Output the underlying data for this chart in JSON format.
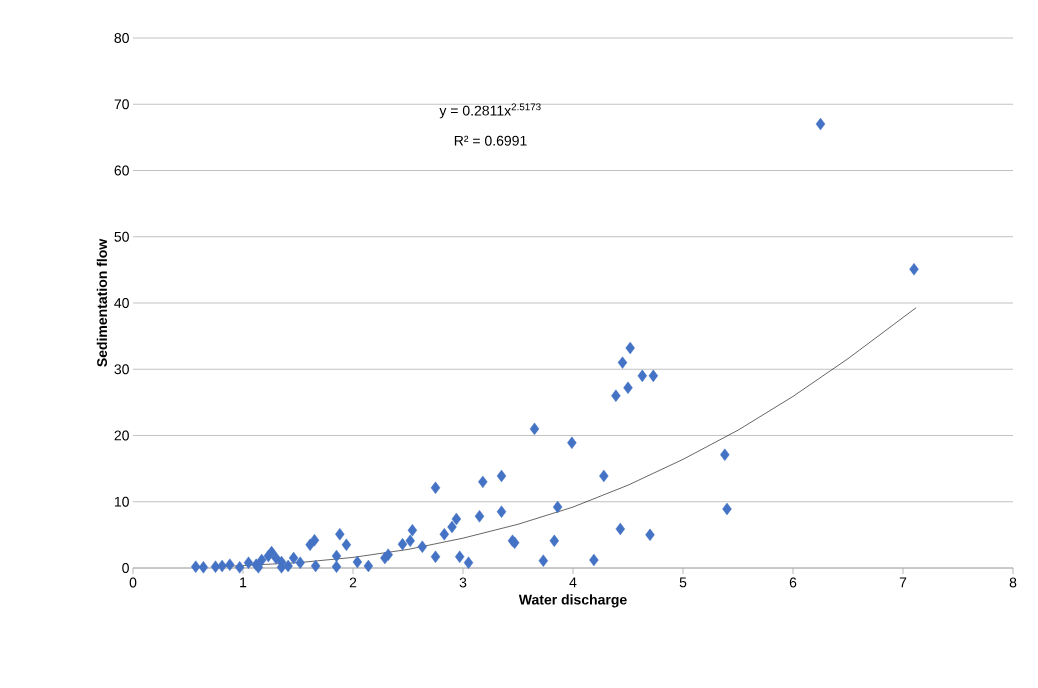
{
  "chart_data": {
    "type": "scatter",
    "xlabel": "Water discharge",
    "ylabel": "Sedimentation flow",
    "xlim": [
      0,
      8
    ],
    "ylim": [
      0,
      80
    ],
    "xticks": [
      0,
      1,
      2,
      3,
      4,
      5,
      6,
      7,
      8
    ],
    "yticks": [
      0,
      10,
      20,
      30,
      40,
      50,
      60,
      70,
      80
    ],
    "grid": "y",
    "annotations": [
      "y = 0.2811x$^{2.5173}$",
      "R² = 0.6991"
    ],
    "series": [
      {
        "color": "#4472c4",
        "marker": "diamond",
        "x": [
          0.57,
          0.64,
          0.75,
          0.81,
          0.88,
          0.97,
          1.05,
          1.12,
          1.17,
          1.23,
          1.26,
          1.3,
          1.35,
          1.41,
          1.46,
          1.52,
          1.14,
          1.35,
          1.61,
          1.65,
          1.66,
          1.85,
          1.85,
          1.88,
          1.94,
          2.04,
          2.14,
          2.29,
          2.32,
          2.45,
          2.52,
          2.54,
          2.63,
          2.75,
          2.75,
          2.83,
          2.9,
          2.94,
          2.97,
          3.05,
          3.15,
          3.18,
          3.35,
          3.35,
          3.45,
          3.47,
          3.65,
          3.73,
          3.83,
          3.86,
          3.99,
          4.19,
          4.28,
          4.39,
          4.43,
          4.45,
          4.5,
          4.52,
          4.63,
          4.73,
          4.7,
          5.38,
          5.4,
          6.25,
          7.1
        ],
        "values": [
          0.2,
          0.1,
          0.2,
          0.3,
          0.5,
          0.1,
          0.8,
          0.5,
          1.2,
          1.8,
          2.4,
          1.5,
          0.9,
          0.3,
          1.5,
          0.8,
          0.1,
          0.1,
          3.5,
          4.2,
          0.3,
          0.2,
          1.8,
          5.1,
          3.5,
          0.9,
          0.3,
          1.5,
          2.0,
          3.6,
          4.1,
          5.7,
          3.2,
          12.1,
          1.7,
          5.1,
          6.2,
          7.4,
          1.7,
          0.8,
          7.8,
          13.0,
          8.5,
          13.9,
          4.1,
          3.8,
          21.0,
          1.1,
          4.1,
          9.2,
          18.9,
          1.2,
          13.9,
          26.0,
          5.9,
          31.0,
          27.2,
          33.2,
          29.0,
          29.0,
          5.0,
          17.1,
          8.9,
          67.0,
          45.1
        ]
      },
      {
        "type": "line",
        "color": "#000000",
        "marker": "none",
        "line_style": "solid",
        "x": [
          0.8,
          1.5,
          2,
          2.5,
          3,
          3.5,
          4,
          4.5,
          5,
          5.5,
          6,
          6.5,
          7.12
        ],
        "values": [
          0.2,
          0.8,
          1.6,
          2.8,
          4.5,
          6.6,
          9.2,
          12.5,
          16.4,
          20.8,
          25.9,
          31.6,
          39.3
        ]
      }
    ]
  }
}
